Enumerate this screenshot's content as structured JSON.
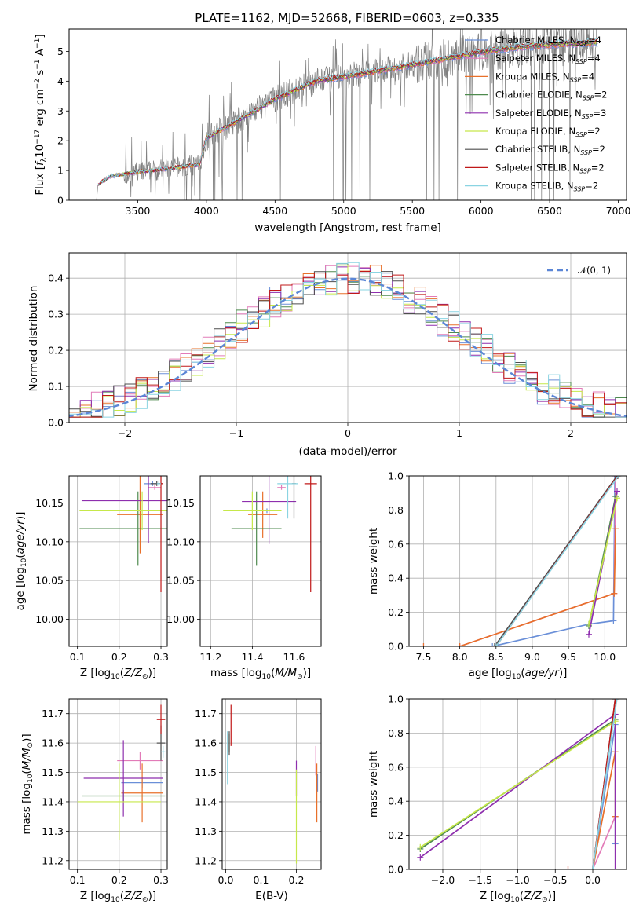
{
  "figure": {
    "title": "PLATE=1162, MJD=52668, FIBERID=0603, z=0.335"
  },
  "colors": {
    "Chabrier MILES": "#6a8fd8",
    "Salpeter MILES": "#e27bb8",
    "Kroupa MILES": "#e8702a",
    "Chabrier ELODIE": "#4e8a4e",
    "Salpeter ELODIE": "#8e2fae",
    "Kroupa ELODIE": "#c6e84a",
    "Chabrier STELIB": "#4d4d4d",
    "Salpeter STELIB": "#c01818",
    "Kroupa STELIB": "#8ad4e2",
    "data": "#808080",
    "gaussian": "#5b86d6"
  },
  "chart_data": [
    {
      "id": "spectrum",
      "type": "line",
      "title": "PLATE=1162, MJD=52668, FIBERID=0603, z=0.335",
      "xlabel": "wavelength [Angstrom, rest frame]",
      "ylabel": "Flux [f_λ 10^-17 erg cm^-2 s^-1 A^-1]",
      "xlim": [
        3000,
        7060
      ],
      "ylim": [
        0,
        5.75
      ],
      "xticks": [
        "3500",
        "4000",
        "4500",
        "5000",
        "5500",
        "6000",
        "6500",
        "7000"
      ],
      "yticks": [
        "0",
        "1",
        "2",
        "3",
        "4",
        "5"
      ],
      "grid": false,
      "legend_position": "right",
      "legend": [
        {
          "label": "Chabrier MILES, N_SSP=4",
          "sub": "SSP",
          "n": "4",
          "name": "Chabrier MILES"
        },
        {
          "label": "Salpeter MILES, N_SSP=4",
          "sub": "SSP",
          "n": "4",
          "name": "Salpeter MILES"
        },
        {
          "label": "Kroupa MILES, N_SSP=4",
          "sub": "SSP",
          "n": "4",
          "name": "Kroupa MILES"
        },
        {
          "label": "Chabrier ELODIE, N_SSP=2",
          "sub": "SSP",
          "n": "2",
          "name": "Chabrier ELODIE"
        },
        {
          "label": "Salpeter ELODIE, N_SSP=3",
          "sub": "SSP",
          "n": "3",
          "name": "Salpeter ELODIE"
        },
        {
          "label": "Kroupa ELODIE, N_SSP=2",
          "sub": "SSP",
          "n": "2",
          "name": "Kroupa ELODIE"
        },
        {
          "label": "Chabrier STELIB, N_SSP=2",
          "sub": "SSP",
          "n": "2",
          "name": "Chabrier STELIB"
        },
        {
          "label": "Salpeter STELIB, N_SSP=2",
          "sub": "SSP",
          "n": "2",
          "name": "Salpeter STELIB"
        },
        {
          "label": "Kroupa STELIB, N_SSP=2",
          "sub": "SSP",
          "n": "2",
          "name": "Kroupa STELIB"
        }
      ],
      "continuum": {
        "x": [
          3200,
          3300,
          3500,
          3700,
          3950,
          4000,
          4200,
          4500,
          4800,
          5000,
          5200,
          5500,
          5800,
          6100,
          6400,
          6800
        ],
        "y": [
          0.5,
          0.8,
          0.95,
          1.05,
          1.2,
          2.1,
          2.6,
          3.4,
          4.0,
          4.15,
          4.3,
          4.55,
          4.8,
          5.05,
          5.2,
          5.3
        ]
      }
    },
    {
      "id": "residuals",
      "type": "line",
      "xlabel": "(data-model)/error",
      "ylabel": "Normed distribution",
      "xlim": [
        -2.5,
        2.5
      ],
      "ylim": [
        0,
        0.47
      ],
      "xticks": [
        "−2",
        "−1",
        "0",
        "1",
        "2"
      ],
      "yticks": [
        "0.0",
        "0.1",
        "0.2",
        "0.3",
        "0.4"
      ],
      "grid": true,
      "legend_position": "top-right",
      "legend": [
        {
          "label": "𝒩(0, 1)"
        }
      ]
    },
    {
      "id": "age-vs-Z",
      "type": "scatter",
      "xlabel": "Z [log10(Z/Z⊙)]",
      "ylabel": "age  [log10(age/yr)]",
      "xlim": [
        0.08,
        0.315
      ],
      "ylim": [
        9.965,
        10.185
      ],
      "xticks": [
        "0.1",
        "0.2",
        "0.3"
      ],
      "yticks": [
        "10.00",
        "10.05",
        "10.10",
        "10.15"
      ],
      "grid": true,
      "points": [
        {
          "name": "Chabrier MILES",
          "x": 0.28,
          "y": 10.175,
          "xerr": 0.02,
          "yerr": 0.003
        },
        {
          "name": "Salpeter MILES",
          "x": 0.285,
          "y": 10.17,
          "xerr": 0.015,
          "yerr": 0.003
        },
        {
          "name": "Kroupa MILES",
          "x": 0.25,
          "y": 10.135,
          "xerr": 0.055,
          "yerr": 0.05
        },
        {
          "name": "Chabrier ELODIE",
          "x": 0.245,
          "y": 10.117,
          "xerr": 0.14,
          "yerr": 0.048
        },
        {
          "name": "Salpeter ELODIE",
          "x": 0.27,
          "y": 10.153,
          "xerr": 0.16,
          "yerr": 0.055
        },
        {
          "name": "Kroupa ELODIE",
          "x": 0.255,
          "y": 10.14,
          "xerr": 0.15,
          "yerr": 0.025
        },
        {
          "name": "Chabrier STELIB",
          "x": 0.29,
          "y": 10.175,
          "xerr": 0.015,
          "yerr": 0.003
        },
        {
          "name": "Salpeter STELIB",
          "x": 0.3,
          "y": 10.175,
          "xerr": 0.004,
          "yerr": 0.14
        },
        {
          "name": "Kroupa STELIB",
          "x": 0.295,
          "y": 10.175,
          "xerr": 0.005,
          "yerr": 0.003
        }
      ]
    },
    {
      "id": "age-vs-mass",
      "type": "scatter",
      "xlabel": "mass [log10(M/M⊙)]",
      "ylabel": "",
      "xlim": [
        11.15,
        11.73
      ],
      "ylim": [
        9.965,
        10.185
      ],
      "xticks": [
        "11.2",
        "11.4",
        "11.6"
      ],
      "yticks": [
        "10.00",
        "10.05",
        "10.10",
        "10.15"
      ],
      "grid": true,
      "points": [
        {
          "name": "Chabrier MILES",
          "x": 11.47,
          "y": 10.14,
          "xerr": 0.04,
          "yerr": 0.003
        },
        {
          "name": "Salpeter MILES",
          "x": 11.54,
          "y": 10.17,
          "xerr": 0.02,
          "yerr": 0.003
        },
        {
          "name": "Kroupa MILES",
          "x": 11.45,
          "y": 10.135,
          "xerr": 0.07,
          "yerr": 0.03
        },
        {
          "name": "Chabrier ELODIE",
          "x": 11.42,
          "y": 10.117,
          "xerr": 0.12,
          "yerr": 0.048
        },
        {
          "name": "Salpeter ELODIE",
          "x": 11.48,
          "y": 10.152,
          "xerr": 0.13,
          "yerr": 0.055
        },
        {
          "name": "Kroupa ELODIE",
          "x": 11.4,
          "y": 10.14,
          "xerr": 0.14,
          "yerr": 0.025
        },
        {
          "name": "Chabrier STELIB",
          "x": 11.6,
          "y": 10.175,
          "xerr": 0.01,
          "yerr": 0.045
        },
        {
          "name": "Salpeter STELIB",
          "x": 11.68,
          "y": 10.175,
          "xerr": 0.03,
          "yerr": 0.14
        },
        {
          "name": "Kroupa STELIB",
          "x": 11.57,
          "y": 10.175,
          "xerr": 0.05,
          "yerr": 0.045
        }
      ]
    },
    {
      "id": "mass-weight-vs-age",
      "type": "line",
      "xlabel": "age  [log10(age/yr)]",
      "ylabel": "mass weight",
      "xlim": [
        7.3,
        10.3
      ],
      "ylim": [
        0,
        1
      ],
      "xticks": [
        "7.5",
        "8.0",
        "8.5",
        "9.0",
        "9.5",
        "10.0"
      ],
      "yticks": [
        "0.0",
        "0.2",
        "0.4",
        "0.6",
        "0.8",
        "1.0"
      ],
      "grid": true,
      "series": [
        {
          "name": "Chabrier MILES",
          "x": [
            8.45,
            9.78,
            10.12,
            10.14
          ],
          "y": [
            0.0,
            0.13,
            0.15,
            1.0
          ]
        },
        {
          "name": "Salpeter MILES",
          "x": [
            7.5,
            8.0,
            10.13,
            10.15
          ],
          "y": [
            0.0,
            0.0,
            0.31,
            1.0
          ]
        },
        {
          "name": "Kroupa MILES",
          "x": [
            7.5,
            8.0,
            10.13,
            10.15
          ],
          "y": [
            0.0,
            0.0,
            0.31,
            0.69
          ]
        },
        {
          "name": "Chabrier ELODIE",
          "x": [
            9.78,
            10.15
          ],
          "y": [
            0.12,
            0.88
          ]
        },
        {
          "name": "Salpeter ELODIE",
          "x": [
            9.78,
            10.17
          ],
          "y": [
            0.07,
            0.91
          ]
        },
        {
          "name": "Kroupa ELODIE",
          "x": [
            9.78,
            10.17
          ],
          "y": [
            0.13,
            0.87
          ]
        },
        {
          "name": "Chabrier STELIB",
          "x": [
            8.48,
            10.17
          ],
          "y": [
            0.0,
            1.0
          ]
        },
        {
          "name": "Salpeter STELIB",
          "x": [
            8.5,
            10.18
          ],
          "y": [
            0.0,
            1.0
          ]
        },
        {
          "name": "Kroupa STELIB",
          "x": [
            8.5,
            10.19
          ],
          "y": [
            0.0,
            1.0
          ]
        }
      ]
    },
    {
      "id": "mass-vs-Z",
      "type": "scatter",
      "xlabel": "Z [log10(Z/Z⊙)]",
      "ylabel": "mass [log10(M/M⊙)]",
      "xlim": [
        0.08,
        0.315
      ],
      "ylim": [
        11.17,
        11.75
      ],
      "xticks": [
        "0.1",
        "0.2",
        "0.3"
      ],
      "yticks": [
        "11.2",
        "11.3",
        "11.4",
        "11.5",
        "11.6",
        "11.7"
      ],
      "grid": true,
      "points": [
        {
          "name": "Chabrier MILES",
          "x": 0.255,
          "y": 11.465,
          "xerr": 0.05,
          "yerr": 0.02
        },
        {
          "name": "Salpeter MILES",
          "x": 0.25,
          "y": 11.54,
          "xerr": 0.055,
          "yerr": 0.03
        },
        {
          "name": "Kroupa MILES",
          "x": 0.255,
          "y": 11.43,
          "xerr": 0.05,
          "yerr": 0.1
        },
        {
          "name": "Chabrier ELODIE",
          "x": 0.21,
          "y": 11.42,
          "xerr": 0.1,
          "yerr": 0.02
        },
        {
          "name": "Salpeter ELODIE",
          "x": 0.21,
          "y": 11.48,
          "xerr": 0.095,
          "yerr": 0.13
        },
        {
          "name": "Kroupa ELODIE",
          "x": 0.2,
          "y": 11.4,
          "xerr": 0.1,
          "yerr": 0.13
        },
        {
          "name": "Chabrier STELIB",
          "x": 0.3,
          "y": 11.6,
          "xerr": 0.01,
          "yerr": 0.06
        },
        {
          "name": "Salpeter STELIB",
          "x": 0.3,
          "y": 11.68,
          "xerr": 0.01,
          "yerr": 0.05
        },
        {
          "name": "Kroupa STELIB",
          "x": 0.305,
          "y": 11.57,
          "xerr": 0.005,
          "yerr": 0.02
        }
      ]
    },
    {
      "id": "mass-vs-EBV",
      "type": "scatter",
      "xlabel": "E(B-V)",
      "ylabel": "",
      "xlim": [
        -0.01,
        0.27
      ],
      "ylim": [
        11.17,
        11.75
      ],
      "xticks": [
        "0.0",
        "0.1",
        "0.2"
      ],
      "yticks": [
        "11.2",
        "11.3",
        "11.4",
        "11.5",
        "11.6",
        "11.7"
      ],
      "grid": true,
      "points": [
        {
          "name": "Chabrier MILES",
          "x": 0.26,
          "y": 11.465,
          "xerr": 0.0,
          "yerr": 0.03
        },
        {
          "name": "Salpeter MILES",
          "x": 0.255,
          "y": 11.54,
          "xerr": 0.0,
          "yerr": 0.05
        },
        {
          "name": "Kroupa MILES",
          "x": 0.258,
          "y": 11.43,
          "xerr": 0.0,
          "yerr": 0.1
        },
        {
          "name": "Chabrier ELODIE",
          "x": 0.01,
          "y": 11.6,
          "xerr": 0.0,
          "yerr": 0.03
        },
        {
          "name": "Salpeter ELODIE",
          "x": 0.2,
          "y": 11.48,
          "xerr": 0.0,
          "yerr": 0.06
        },
        {
          "name": "Kroupa ELODIE",
          "x": 0.2,
          "y": 11.35,
          "xerr": 0.0,
          "yerr": 0.16
        },
        {
          "name": "Chabrier STELIB",
          "x": 0.01,
          "y": 11.6,
          "xerr": 0.0,
          "yerr": 0.04
        },
        {
          "name": "Salpeter STELIB",
          "x": 0.015,
          "y": 11.66,
          "xerr": 0.0,
          "yerr": 0.07
        },
        {
          "name": "Kroupa STELIB",
          "x": 0.005,
          "y": 11.55,
          "xerr": 0.0,
          "yerr": 0.09
        }
      ]
    },
    {
      "id": "mass-weight-vs-Z",
      "type": "line",
      "xlabel": "Z [log10(Z/Z⊙)]",
      "ylabel": "mass weight",
      "xlim": [
        -2.45,
        0.45
      ],
      "ylim": [
        0,
        1
      ],
      "xticks": [
        "−2.0",
        "−1.5",
        "−1.0",
        "−0.5",
        "0.0"
      ],
      "yticks": [
        "0.0",
        "0.2",
        "0.4",
        "0.6",
        "0.8",
        "1.0"
      ],
      "grid": true,
      "series": [
        {
          "name": "Chabrier MILES",
          "x": [
            0.0,
            0.3,
            0.3
          ],
          "y": [
            0.0,
            0.85,
            0.15
          ]
        },
        {
          "name": "Salpeter MILES",
          "x": [
            -0.33,
            0.0,
            0.3
          ],
          "y": [
            0.0,
            0.0,
            0.31
          ]
        },
        {
          "name": "Kroupa MILES",
          "x": [
            -0.33,
            0.0,
            0.3,
            0.3
          ],
          "y": [
            0.0,
            0.0,
            0.69,
            0.31
          ]
        },
        {
          "name": "Chabrier ELODIE",
          "x": [
            -2.3,
            0.3
          ],
          "y": [
            0.12,
            0.88
          ]
        },
        {
          "name": "Salpeter ELODIE",
          "x": [
            -2.3,
            0.3,
            0.3
          ],
          "y": [
            0.07,
            0.91,
            0.0
          ]
        },
        {
          "name": "Kroupa ELODIE",
          "x": [
            -2.3,
            0.3
          ],
          "y": [
            0.13,
            0.87
          ]
        },
        {
          "name": "Chabrier STELIB",
          "x": [
            0.0,
            0.3
          ],
          "y": [
            0.0,
            1.0
          ]
        },
        {
          "name": "Salpeter STELIB",
          "x": [
            0.0,
            0.3
          ],
          "y": [
            0.0,
            1.0
          ]
        },
        {
          "name": "Kroupa STELIB",
          "x": [
            0.0,
            0.32
          ],
          "y": [
            0.0,
            1.0
          ]
        }
      ]
    }
  ]
}
